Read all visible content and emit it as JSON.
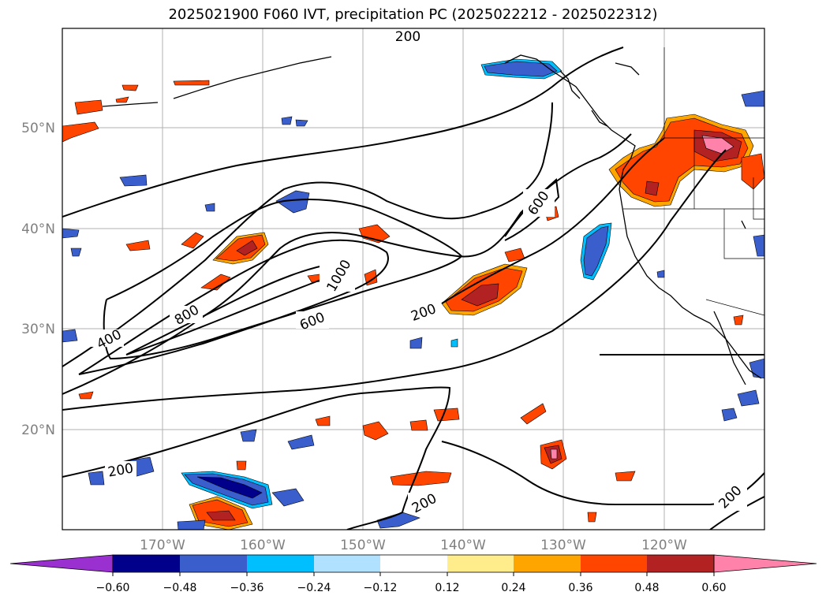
{
  "title": "2025021900 F060 IVT, precipitation PC (2025022212 - 2025022312)",
  "map": {
    "lon_labels": [
      "170°W",
      "160°W",
      "150°W",
      "140°W",
      "130°W",
      "120°W"
    ],
    "lat_labels": [
      "50°N",
      "40°N",
      "30°N",
      "20°N"
    ],
    "contour_labels": [
      "200",
      "400",
      "800",
      "1000",
      "600",
      "600",
      "200",
      "200",
      "200",
      "200"
    ],
    "colors": {
      "contour": "#000000",
      "grid": "#b0b0b0",
      "tick_label": "#808080"
    }
  },
  "colorbar": {
    "ticks": [
      "−0.60",
      "−0.48",
      "−0.36",
      "−0.24",
      "−0.12",
      "0.12",
      "0.24",
      "0.36",
      "0.48",
      "0.60"
    ],
    "colors": [
      "#9b30d0",
      "#00008b",
      "#3a5fcd",
      "#00bfff",
      "#b0e2ff",
      "#ffffff",
      "#ffec8b",
      "#ffa500",
      "#ff4500",
      "#b22222",
      "#ff82ab"
    ]
  }
}
